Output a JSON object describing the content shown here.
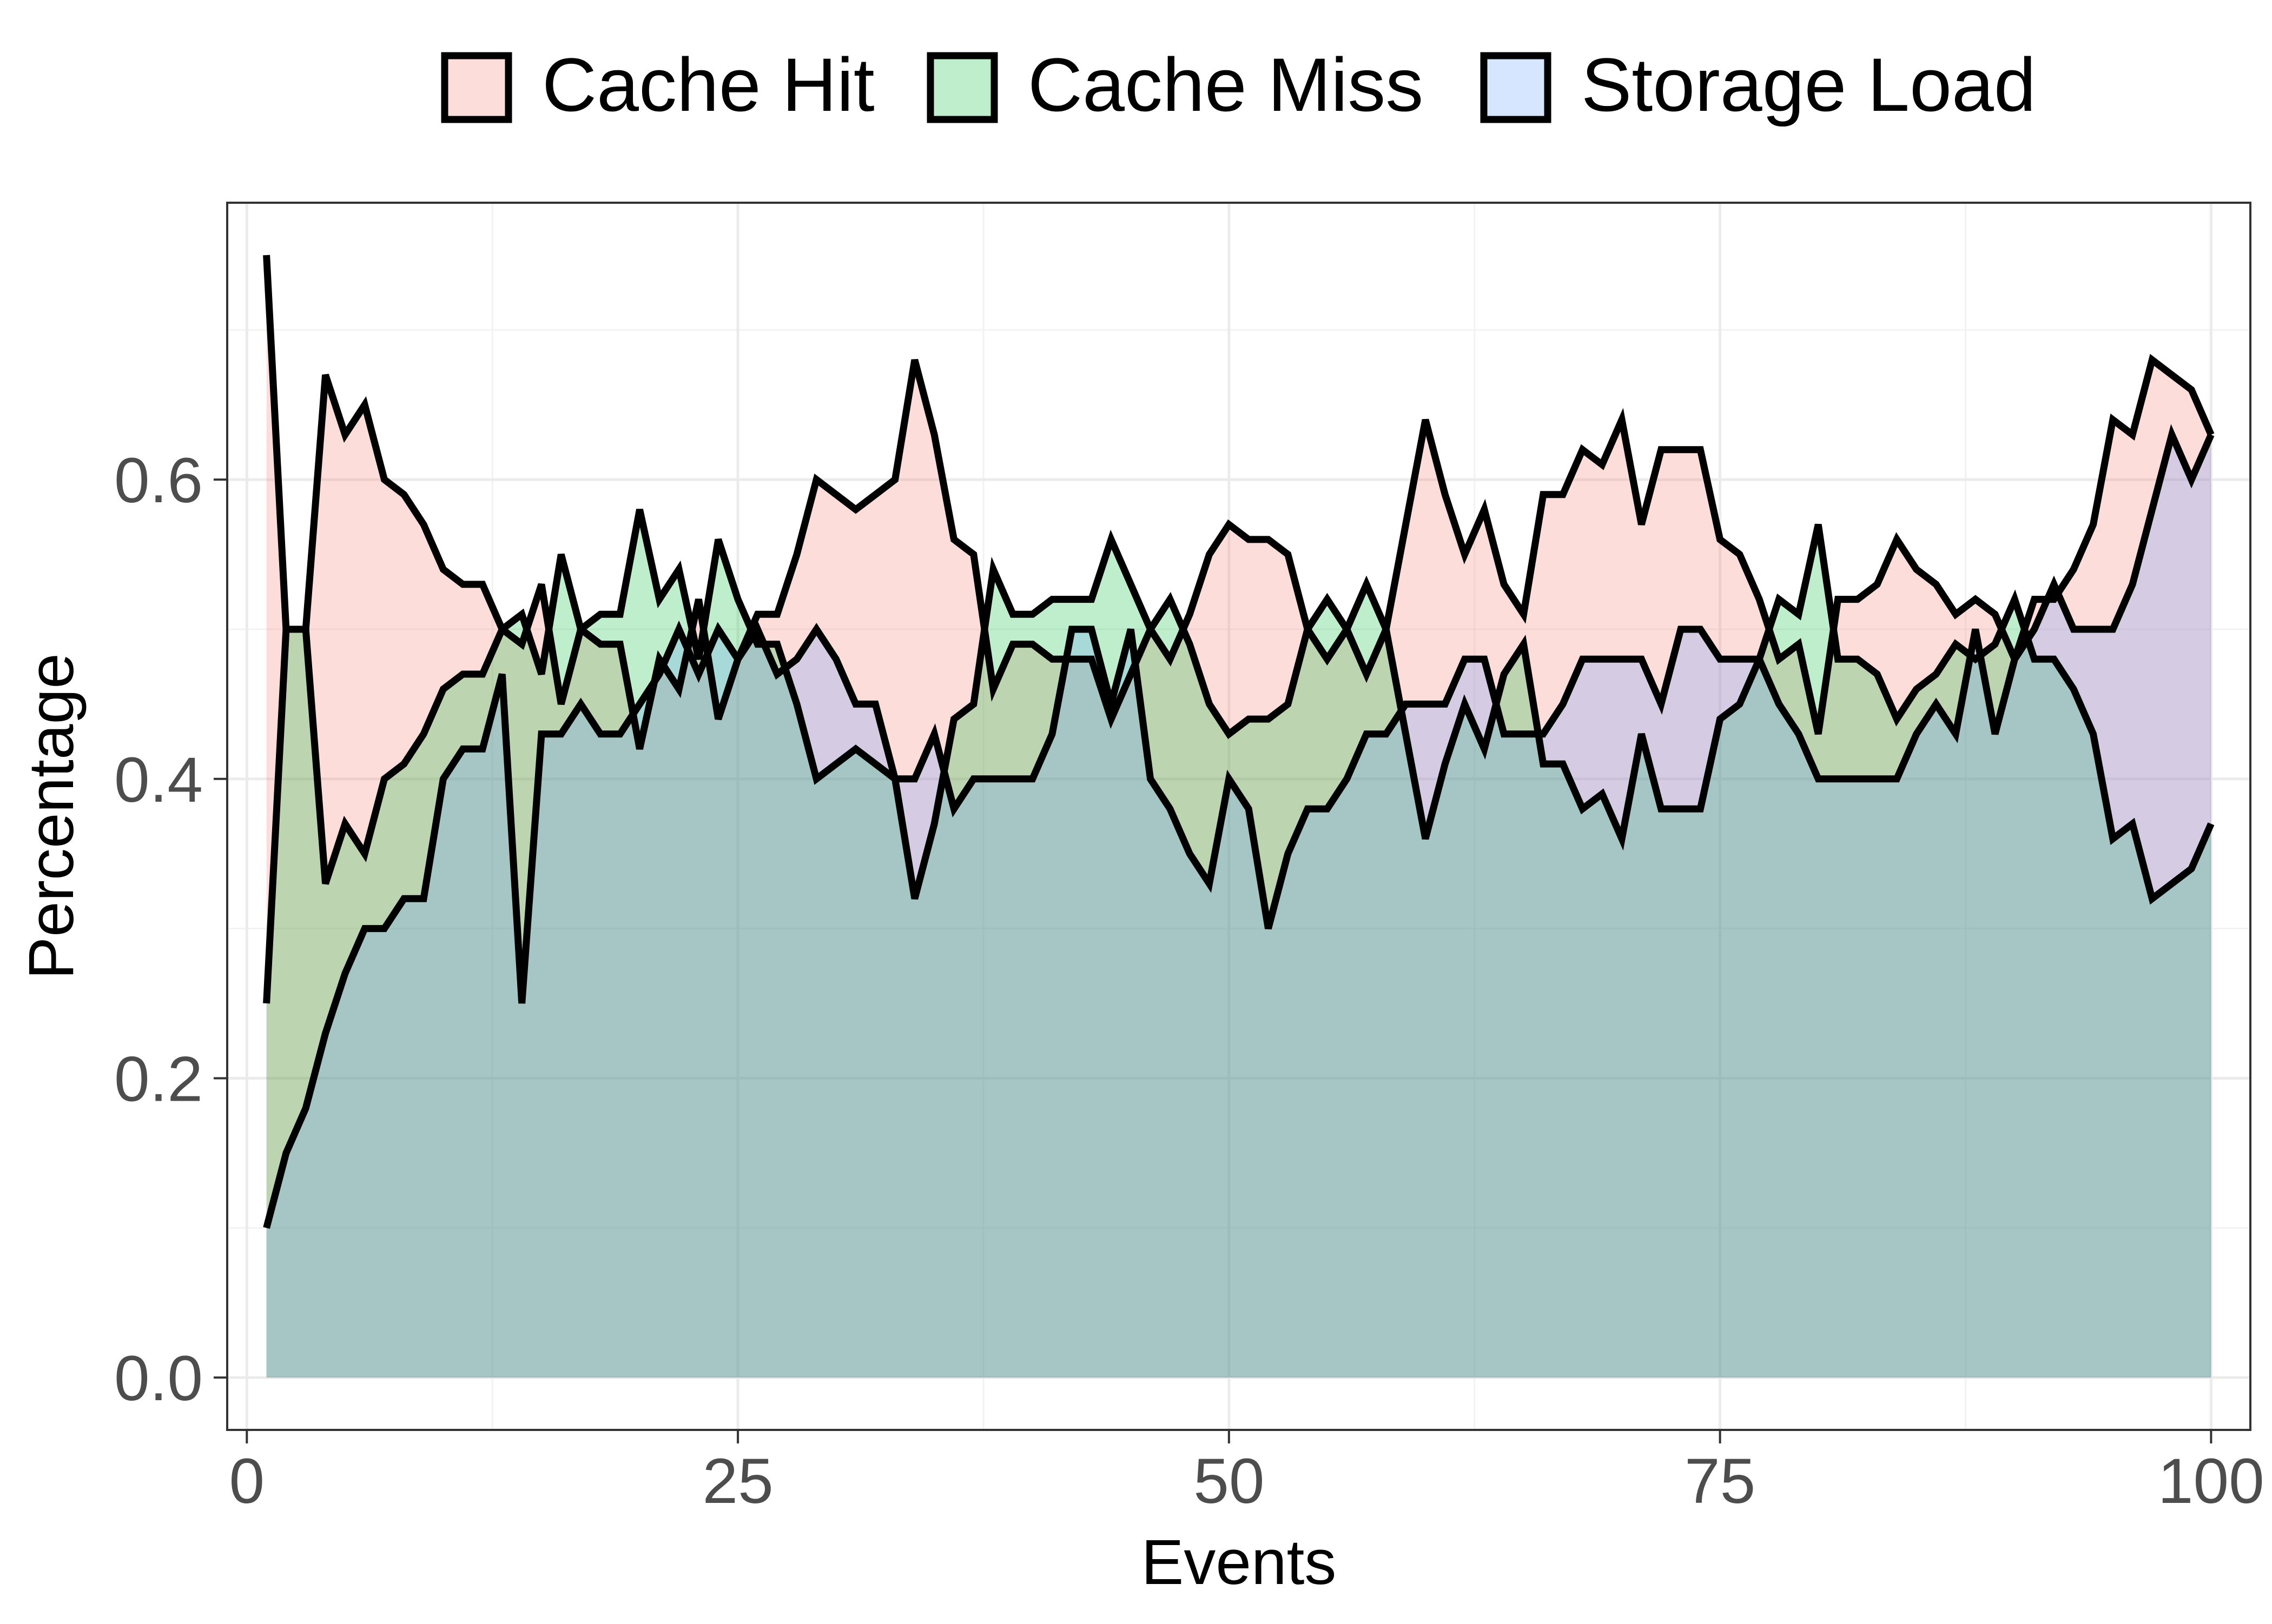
{
  "chart_data": {
    "type": "area",
    "title": "",
    "xlabel": "Events",
    "ylabel": "Percentage",
    "xlim": [
      -1,
      102
    ],
    "ylim": [
      -0.035,
      0.785
    ],
    "x_ticks": [
      0,
      25,
      50,
      75,
      100
    ],
    "x_tick_labels": [
      "0",
      "25",
      "50",
      "75",
      "100"
    ],
    "y_ticks": [
      0.0,
      0.2,
      0.4,
      0.6
    ],
    "y_tick_labels": [
      "0.0",
      "0.2",
      "0.4",
      "0.6"
    ],
    "grid": true,
    "legend_position": "top",
    "x": [
      1,
      2,
      3,
      4,
      5,
      6,
      7,
      8,
      9,
      10,
      11,
      12,
      13,
      14,
      15,
      16,
      17,
      18,
      19,
      20,
      21,
      22,
      23,
      24,
      25,
      26,
      27,
      28,
      29,
      30,
      31,
      32,
      33,
      34,
      35,
      36,
      37,
      38,
      39,
      40,
      41,
      42,
      43,
      44,
      45,
      46,
      47,
      48,
      49,
      50,
      51,
      52,
      53,
      54,
      55,
      56,
      57,
      58,
      59,
      60,
      61,
      62,
      63,
      64,
      65,
      66,
      67,
      68,
      69,
      70,
      71,
      72,
      73,
      74,
      75,
      76,
      77,
      78,
      79,
      80,
      81,
      82,
      83,
      84,
      85,
      86,
      87,
      88,
      89,
      90,
      91,
      92,
      93,
      94,
      95,
      96,
      97,
      98,
      99,
      100
    ],
    "series": [
      {
        "name": "Cache Hit",
        "color": "#f8766d",
        "values": [
          0.75,
          0.5,
          0.5,
          0.67,
          0.63,
          0.65,
          0.6,
          0.59,
          0.57,
          0.54,
          0.53,
          0.53,
          0.5,
          0.49,
          0.53,
          0.45,
          0.5,
          0.49,
          0.49,
          0.42,
          0.48,
          0.46,
          0.52,
          0.44,
          0.48,
          0.51,
          0.51,
          0.55,
          0.6,
          0.59,
          0.58,
          0.59,
          0.6,
          0.68,
          0.63,
          0.56,
          0.55,
          0.46,
          0.49,
          0.49,
          0.48,
          0.48,
          0.48,
          0.44,
          0.47,
          0.5,
          0.48,
          0.51,
          0.55,
          0.57,
          0.56,
          0.56,
          0.55,
          0.5,
          0.48,
          0.5,
          0.47,
          0.5,
          0.57,
          0.64,
          0.59,
          0.55,
          0.58,
          0.53,
          0.51,
          0.59,
          0.59,
          0.62,
          0.61,
          0.64,
          0.57,
          0.62,
          0.62,
          0.62,
          0.56,
          0.55,
          0.52,
          0.48,
          0.49,
          0.43,
          0.52,
          0.52,
          0.53,
          0.56,
          0.54,
          0.53,
          0.51,
          0.52,
          0.51,
          0.48,
          0.52,
          0.52,
          0.54,
          0.57,
          0.64,
          0.63,
          0.68,
          0.67,
          0.66,
          0.63
        ]
      },
      {
        "name": "Cache Miss",
        "color": "#00ba38",
        "values": [
          0.25,
          0.5,
          0.5,
          0.33,
          0.37,
          0.35,
          0.4,
          0.41,
          0.43,
          0.46,
          0.47,
          0.47,
          0.5,
          0.51,
          0.47,
          0.55,
          0.5,
          0.51,
          0.51,
          0.58,
          0.52,
          0.54,
          0.48,
          0.56,
          0.52,
          0.49,
          0.49,
          0.45,
          0.4,
          0.41,
          0.42,
          0.41,
          0.4,
          0.32,
          0.37,
          0.44,
          0.45,
          0.54,
          0.51,
          0.51,
          0.52,
          0.52,
          0.52,
          0.56,
          0.53,
          0.5,
          0.52,
          0.49,
          0.45,
          0.43,
          0.44,
          0.44,
          0.45,
          0.5,
          0.52,
          0.5,
          0.53,
          0.5,
          0.43,
          0.36,
          0.41,
          0.45,
          0.42,
          0.47,
          0.49,
          0.41,
          0.41,
          0.38,
          0.39,
          0.36,
          0.43,
          0.38,
          0.38,
          0.38,
          0.44,
          0.45,
          0.48,
          0.52,
          0.51,
          0.57,
          0.48,
          0.48,
          0.47,
          0.44,
          0.46,
          0.47,
          0.49,
          0.48,
          0.49,
          0.52,
          0.48,
          0.48,
          0.46,
          0.43,
          0.36,
          0.37,
          0.32,
          0.33,
          0.34,
          0.37
        ]
      },
      {
        "name": "Storage Load",
        "color": "#619cff",
        "values": [
          0.1,
          0.15,
          0.18,
          0.23,
          0.27,
          0.3,
          0.3,
          0.32,
          0.32,
          0.4,
          0.42,
          0.42,
          0.47,
          0.25,
          0.43,
          0.43,
          0.45,
          0.43,
          0.43,
          0.45,
          0.47,
          0.5,
          0.47,
          0.5,
          0.48,
          0.5,
          0.47,
          0.48,
          0.5,
          0.48,
          0.45,
          0.45,
          0.4,
          0.4,
          0.43,
          0.38,
          0.4,
          0.4,
          0.4,
          0.4,
          0.43,
          0.5,
          0.5,
          0.45,
          0.5,
          0.4,
          0.38,
          0.35,
          0.33,
          0.4,
          0.38,
          0.3,
          0.35,
          0.38,
          0.38,
          0.4,
          0.43,
          0.43,
          0.45,
          0.45,
          0.45,
          0.48,
          0.48,
          0.43,
          0.43,
          0.43,
          0.45,
          0.48,
          0.48,
          0.48,
          0.48,
          0.45,
          0.5,
          0.5,
          0.48,
          0.48,
          0.48,
          0.45,
          0.43,
          0.4,
          0.4,
          0.4,
          0.4,
          0.4,
          0.43,
          0.45,
          0.43,
          0.5,
          0.43,
          0.48,
          0.5,
          0.53,
          0.5,
          0.5,
          0.5,
          0.53,
          0.58,
          0.63,
          0.6,
          0.63
        ]
      }
    ]
  }
}
